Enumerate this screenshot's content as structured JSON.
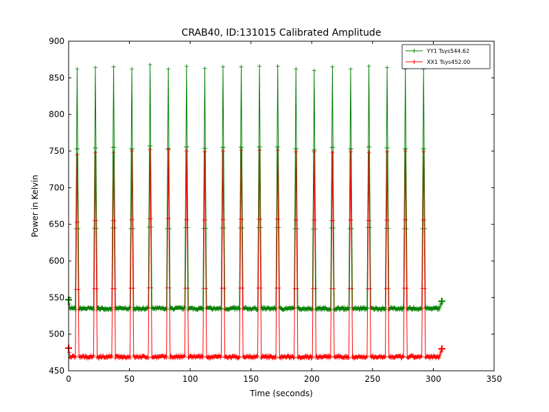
{
  "chart_data": {
    "type": "line",
    "title": "CRAB40, ID:131015 Calibrated Amplitude",
    "xlabel": "Time (seconds)",
    "ylabel": "Power in Kelvin",
    "xlim": [
      0,
      350
    ],
    "ylim": [
      450,
      900
    ],
    "xticks": [
      0,
      50,
      100,
      150,
      200,
      250,
      300,
      350
    ],
    "yticks": [
      450,
      500,
      550,
      600,
      650,
      700,
      750,
      800,
      850,
      900
    ],
    "grid": false,
    "legend_position": "top-right",
    "peak_times": [
      7,
      22,
      37,
      52,
      67,
      82,
      97,
      112,
      127,
      142,
      157,
      172,
      187,
      202,
      217,
      232,
      247,
      262,
      277,
      292
    ],
    "series": [
      {
        "name": "YY1 Tsys544.62",
        "color": "#008000",
        "marker": "+",
        "t_start": 0,
        "t_end": 307,
        "baseline": 535,
        "peak_values": [
          862,
          864,
          865,
          862,
          868,
          862,
          866,
          863,
          865,
          865,
          866,
          866,
          862,
          860,
          865,
          862,
          866,
          864,
          862,
          862
        ],
        "start_value": 547,
        "end_value": 545
      },
      {
        "name": "XX1 Tsys452.00",
        "color": "#ff0000",
        "marker": "+",
        "t_start": 0,
        "t_end": 307,
        "baseline": 469,
        "peak_values": [
          745,
          748,
          748,
          750,
          752,
          752,
          750,
          749,
          750,
          751,
          751,
          751,
          749,
          749,
          748,
          749,
          748,
          749,
          750,
          749
        ],
        "start_value": 481,
        "end_value": 480
      }
    ]
  }
}
